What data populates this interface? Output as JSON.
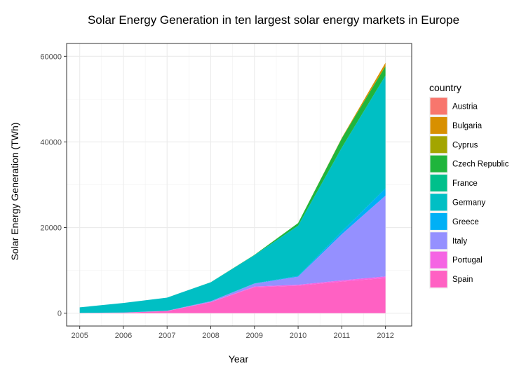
{
  "chart_data": {
    "type": "area",
    "stacked": true,
    "title": "Solar Energy Generation in ten largest solar energy markets in Europe",
    "xlabel": "Year",
    "ylabel": "Solar Energy Generation (TWh)",
    "x": [
      2005,
      2006,
      2007,
      2008,
      2009,
      2010,
      2011,
      2012
    ],
    "xlim": [
      2004.7,
      2012.6
    ],
    "ylim": [
      -3000,
      63000
    ],
    "yticks": [
      0,
      20000,
      40000,
      60000
    ],
    "ytick_labels": [
      "0",
      "20000",
      "40000",
      "60000"
    ],
    "xtick_labels": [
      "2005",
      "2006",
      "2007",
      "2008",
      "2009",
      "2010",
      "2011",
      "2012"
    ],
    "grid": true,
    "legend": {
      "title": "country",
      "position": "right"
    },
    "series": [
      {
        "name": "Spain",
        "color": "#FF61C3",
        "values": [
          41,
          119,
          500,
          2562,
          6072,
          6423,
          7386,
          8202
        ]
      },
      {
        "name": "Portugal",
        "color": "#F564E3",
        "values": [
          3,
          5,
          24,
          41,
          160,
          215,
          280,
          393
        ]
      },
      {
        "name": "Italy",
        "color": "#9590FF",
        "values": [
          31,
          35,
          39,
          193,
          676,
          1906,
          10796,
          18862
        ]
      },
      {
        "name": "Greece",
        "color": "#00B0F6",
        "values": [
          1,
          1,
          1,
          3,
          50,
          158,
          610,
          1694
        ]
      },
      {
        "name": "Germany",
        "color": "#00BFC4",
        "values": [
          1282,
          2220,
          3075,
          4420,
          6583,
          11729,
          19599,
          26380
        ]
      },
      {
        "name": "France",
        "color": "#00C08B",
        "values": [
          0,
          0,
          0,
          0,
          0,
          0,
          0,
          0
        ]
      },
      {
        "name": "Czech Republic",
        "color": "#1FB53C",
        "values": [
          0,
          0,
          2,
          13,
          89,
          616,
          2182,
          2173
        ]
      },
      {
        "name": "Cyprus",
        "color": "#A3A500",
        "values": [
          0,
          0,
          0,
          0,
          0,
          0,
          0,
          0
        ]
      },
      {
        "name": "Bulgaria",
        "color": "#D89000",
        "values": [
          0,
          0,
          0,
          0,
          2,
          14,
          101,
          800
        ]
      },
      {
        "name": "Austria",
        "color": "#F8766D",
        "values": [
          0,
          0,
          0,
          0,
          0,
          0,
          0,
          0
        ]
      }
    ]
  }
}
